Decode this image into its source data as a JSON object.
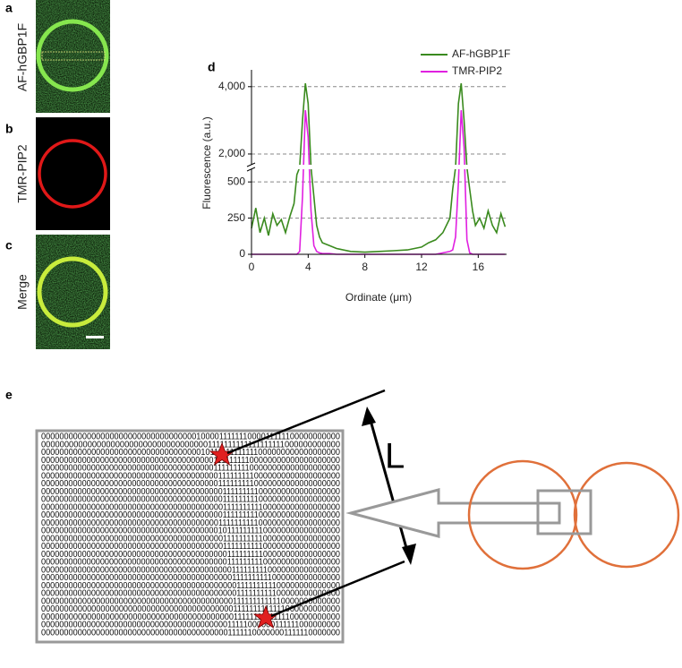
{
  "panels": {
    "a": {
      "label": "a",
      "caption": "AF-hGBP1F"
    },
    "b": {
      "label": "b",
      "caption": "TMR-PIP2"
    },
    "c": {
      "label": "c",
      "caption": "Merge"
    },
    "e": {
      "label": "e",
      "dimension": "L",
      "matrix": [
        "0000000000000000000000000000000000100001111111000011111100000000000",
        "0000000000000000000000000000000000001111111111111111111000000000000",
        "0000000000000000000000000000000000010111111111111000000000000000000",
        "0000000000000000000000000000000000000011111111100000000000000000000",
        "0000000000000000000000000000000000000011111111100000000000000000000",
        "0000000000000000000000000000000000000001111111110000000000000000000",
        "0000000000000000000000000000000000000001111111110000000000000000000",
        "0000000000000000000000000000000000000000111111111000000000000000000",
        "0000000000000000000000000000000000000000111111111000000000000000000",
        "0000000000000000000000000000000000000000111111111100000000000000000",
        "0000000000000000000000000000000000000000111111111000000000000000000",
        "0000000000000000000000000000000000000001111111111000000000000000000",
        "0000000000000000000000000000000000000001011111111100000000000000000",
        "0000000000000000000000000000000000000000111111111100000000000000000",
        "0000000000000000000000000000000000000000111111111100000000000000000",
        "0000000000000000000000000000000000000000011111111100000000000000000",
        "0000000000000000000000000000000000000000011111111100000000000000000",
        "0000000000000000000000000000000000000000001111111110000000000000000",
        "0000000000000000000000000000000000000000001111111111000000000000000",
        "0000000000000000000000000000000000000000000111111111100000000000000",
        "0000000000000000000000000000000000000000000111111111100000000000000",
        "0000000000000000000000000000000000000000001111111111110000000000000",
        "0000000000000000000000000000000000000000001111111111111000000000000",
        "0000000000000000000000000000000000000000001111111111111100000000000",
        "0000000000000000000000000000000000000000011111000000111111000000000",
        "0000000000000000000000000000000000000000011111100000001111110000000"
      ]
    }
  },
  "chart_data": {
    "type": "line",
    "panel_label": "d",
    "xlabel": "Ordinate (μm)",
    "ylabel": "Fluorescence (a.u.)",
    "x": [
      0,
      0.3,
      0.6,
      0.9,
      1.2,
      1.5,
      1.8,
      2.1,
      2.4,
      2.7,
      3.0,
      3.2,
      3.4,
      3.6,
      3.8,
      4.0,
      4.2,
      4.4,
      4.6,
      4.8,
      5.0,
      5.5,
      6,
      7,
      8,
      9,
      10,
      11,
      12,
      12.5,
      13,
      13.5,
      14,
      14.2,
      14.4,
      14.6,
      14.8,
      15.0,
      15.2,
      15.4,
      15.6,
      15.8,
      16.1,
      16.4,
      16.7,
      17,
      17.3,
      17.6,
      17.9
    ],
    "series": [
      {
        "name": "AF-hGBP1F",
        "color": "#3a8a1e",
        "values": [
          180,
          320,
          150,
          250,
          130,
          280,
          200,
          240,
          150,
          260,
          350,
          550,
          600,
          3000,
          4100,
          3500,
          600,
          400,
          200,
          120,
          80,
          60,
          40,
          20,
          15,
          20,
          25,
          30,
          50,
          80,
          100,
          150,
          250,
          450,
          600,
          3500,
          4100,
          3000,
          600,
          450,
          300,
          200,
          250,
          180,
          300,
          200,
          150,
          280,
          190
        ]
      },
      {
        "name": "TMR-PIP2",
        "color": "#e020e0",
        "values": [
          0,
          0,
          0,
          0,
          0,
          0,
          0,
          0,
          0,
          0,
          0,
          0,
          20,
          400,
          3300,
          2500,
          300,
          60,
          20,
          10,
          5,
          5,
          0,
          0,
          0,
          0,
          0,
          0,
          0,
          0,
          0,
          10,
          20,
          30,
          120,
          500,
          3300,
          2200,
          100,
          10,
          0,
          0,
          0,
          0,
          0,
          0,
          0,
          0,
          0
        ]
      }
    ],
    "xlim": [
      0,
      18
    ],
    "xticks": [
      0,
      4,
      8,
      12,
      16
    ],
    "ylim": [
      0,
      4500
    ],
    "ybreak": [
      600,
      1600
    ],
    "yticks": [
      0,
      250,
      500,
      {
        "value": 2000,
        "label": "2,000"
      },
      {
        "value": 4000,
        "label": "4,000"
      }
    ],
    "grid": true,
    "legend": "top-right"
  }
}
